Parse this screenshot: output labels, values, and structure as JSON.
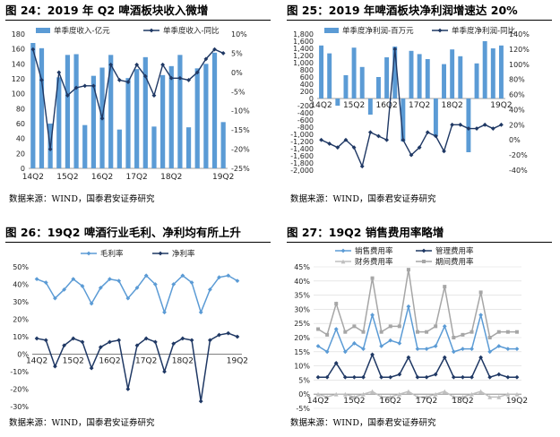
{
  "panels": [
    {
      "title": "图 24：2019 年 Q2 啤酒板块收入微增",
      "source": "数据来源：WIND，国泰君安证券研究",
      "chart_data": {
        "type": "bar+line",
        "x_ticks": [
          "14Q2",
          "15Q2",
          "16Q2",
          "17Q2",
          "18Q2",
          "19Q2"
        ],
        "n": 23,
        "legend": [
          "单季度收入-亿元",
          "单季度收入-同比"
        ],
        "y_left": {
          "min": 0,
          "max": 180,
          "ticks": [
            0,
            20,
            40,
            60,
            80,
            100,
            120,
            140,
            160,
            180
          ]
        },
        "y_right": {
          "min": -25,
          "max": 10,
          "ticks": [
            "10%",
            "5%",
            "0%",
            "-5%",
            "-10%",
            "-15%",
            "-20%",
            "-25%"
          ],
          "tick_values": [
            10,
            5,
            0,
            -5,
            -10,
            -15,
            -20,
            -25
          ]
        },
        "bar_values": [
          168,
          161,
          60,
          122,
          152,
          153,
          58,
          124,
          135,
          152,
          52,
          121,
          133,
          149,
          56,
          125,
          137,
          152,
          55,
          134,
          140,
          155,
          62
        ],
        "line_values": [
          6,
          -2,
          -20,
          0,
          -6,
          -4,
          -3.5,
          -3.5,
          -12,
          2,
          -2,
          -2.5,
          2,
          -1,
          -6,
          2,
          -1.5,
          -1.5,
          -2,
          0,
          3.5,
          6,
          5
        ]
      }
    },
    {
      "title": "图 25：2019 年啤酒板块净利润增速达 20%",
      "source": "数据来源：WIND，国泰君安证券研究",
      "chart_data": {
        "type": "bar+line",
        "x_ticks": [
          "14Q2",
          "15Q2",
          "16Q2",
          "17Q2",
          "18Q2",
          "19Q2"
        ],
        "n": 23,
        "legend": [
          "单季度净利润-百万元",
          "单季度净利润-同比"
        ],
        "y_left": {
          "min": -2000,
          "max": 1800,
          "ticks": [
            1800,
            1600,
            1400,
            1200,
            1000,
            800,
            600,
            400,
            200,
            0,
            -200,
            -400,
            -600,
            -800,
            -1000,
            -1200,
            -1400,
            -1600,
            -1800,
            -2000
          ]
        },
        "y_right": {
          "min": -40,
          "max": 140,
          "ticks": [
            "140%",
            "120%",
            "100%",
            "80%",
            "60%",
            "40%",
            "20%",
            "0%",
            "-20%",
            "-40%"
          ],
          "tick_values": [
            140,
            120,
            100,
            80,
            60,
            40,
            20,
            0,
            -20,
            -40
          ]
        },
        "bar_values": [
          1480,
          1260,
          -200,
          650,
          1420,
          880,
          -450,
          600,
          1150,
          1450,
          -1200,
          1330,
          1240,
          1100,
          -1050,
          960,
          1370,
          1180,
          -1500,
          980,
          1600,
          1400,
          1480
        ],
        "line_values": [
          0,
          -5,
          -10,
          0,
          -10,
          -35,
          10,
          5,
          0,
          120,
          0,
          -20,
          -10,
          10,
          5,
          -15,
          20,
          20,
          15,
          15,
          20,
          15,
          20
        ]
      }
    },
    {
      "title": "图 26：19Q2 啤酒行业毛利、净利均有所上升",
      "source": "数据来源：WIND，国泰君安证券研究",
      "chart_data": {
        "type": "line",
        "x_ticks": [
          "14Q2",
          "15Q2",
          "16Q2",
          "17Q2",
          "18Q2",
          "19Q2"
        ],
        "n": 23,
        "legend": [
          "毛利率",
          "净利率"
        ],
        "y": {
          "min": -30,
          "max": 50,
          "ticks": [
            "50%",
            "40%",
            "30%",
            "20%",
            "10%",
            "0%",
            "-10%",
            "-20%",
            "-30%"
          ],
          "tick_values": [
            50,
            40,
            30,
            20,
            10,
            0,
            -10,
            -20,
            -30
          ]
        },
        "series": [
          {
            "name": "毛利率",
            "color": "#5b9bd5",
            "marker": "diamond",
            "values": [
              43,
              41,
              32,
              37,
              43,
              39,
              29,
              38,
              43,
              42,
              32,
              38,
              45,
              40,
              24,
              40,
              45,
              41,
              24,
              37,
              44,
              45,
              42
            ]
          },
          {
            "name": "净利率",
            "color": "#1f3864",
            "marker": "diamond",
            "values": [
              9,
              8,
              -7,
              5,
              9,
              7,
              -8,
              4,
              7,
              8,
              -20,
              5,
              9,
              7,
              -10,
              6,
              9,
              8,
              -27,
              8,
              11,
              12,
              10
            ]
          }
        ]
      }
    },
    {
      "title": "图 27：19Q2 销售费用率略增",
      "source": "数据来源：WIND，国泰君安证券研究",
      "chart_data": {
        "type": "line",
        "x_ticks": [
          "14Q2",
          "15Q2",
          "16Q2",
          "17Q2",
          "18Q2",
          "19Q2"
        ],
        "n": 23,
        "legend": [
          "销售费用率",
          "管理费用率",
          "财务费用率",
          "期间费用率"
        ],
        "y": {
          "min": -5,
          "max": 45,
          "ticks": [
            "45%",
            "40%",
            "35%",
            "30%",
            "25%",
            "20%",
            "15%",
            "10%",
            "5%",
            "0%",
            "-5%"
          ],
          "tick_values": [
            45,
            40,
            35,
            30,
            25,
            20,
            15,
            10,
            5,
            0,
            -5
          ]
        },
        "series": [
          {
            "name": "销售费用率",
            "color": "#5b9bd5",
            "marker": "diamond",
            "values": [
              17,
              15,
              23,
              15,
              18,
              16,
              28,
              17,
              19,
              18,
              31,
              16,
              16,
              17,
              24,
              15,
              16,
              16,
              28,
              15,
              17,
              16,
              16
            ]
          },
          {
            "name": "管理费用率",
            "color": "#1f3864",
            "marker": "diamond",
            "values": [
              6,
              6,
              11,
              6,
              6,
              6,
              14,
              6,
              6,
              7,
              13,
              6,
              6,
              7,
              13,
              6,
              6,
              6,
              13,
              6,
              7,
              6,
              6
            ]
          },
          {
            "name": "财务费用率",
            "color": "#bfbfbf",
            "marker": "triangle",
            "values": [
              0,
              -1,
              0,
              0,
              -1,
              0,
              1,
              -1,
              -1,
              0,
              1,
              -1,
              -1,
              0,
              1,
              -1,
              -1,
              0,
              1,
              -1,
              -1,
              0,
              0
            ]
          },
          {
            "name": "期间费用率",
            "color": "#a6a6a6",
            "marker": "square",
            "values": [
              23,
              21,
              32,
              22,
              24,
              22,
              41,
              22,
              24,
              24,
              44,
              22,
              22,
              24,
              38,
              20,
              21,
              22,
              36,
              20,
              22,
              22,
              22
            ]
          }
        ]
      }
    }
  ]
}
